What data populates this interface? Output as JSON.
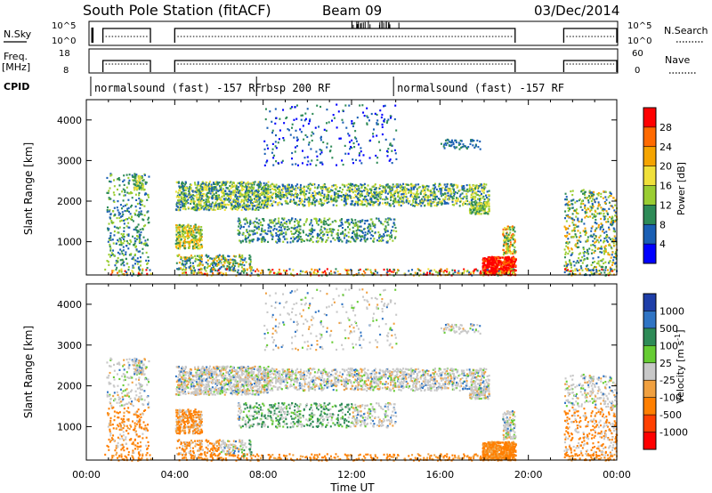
{
  "header": {
    "station": "South Pole Station (fitACF)",
    "beam": "Beam 09",
    "date": "03/Dec/2014"
  },
  "status": {
    "nsky_label": "N.Sky",
    "nsky_ticks": [
      "10^5",
      "10^0"
    ],
    "nsearch_label": "N.Search",
    "nsearch_ticks": [
      "10^5",
      "10^0"
    ],
    "freq_label": "Freq.",
    "freq_unit": "[MHz]",
    "freq_ticks": [
      "18",
      "8"
    ],
    "nave_label": "Nave",
    "nave_ticks": [
      "60",
      "0"
    ],
    "cpid_label": "CPID",
    "data_segments_utc": [
      [
        0.75,
        2.9
      ],
      [
        4.0,
        19.4
      ],
      [
        21.6,
        24.0
      ]
    ],
    "cpid_segments": [
      {
        "start": 0.2,
        "label": "normalsound (fast) -157 RF"
      },
      {
        "start": 7.7,
        "label": "rbsp 200 RF"
      },
      {
        "start": 13.9,
        "label": "normalsound (fast) -157 RF"
      }
    ]
  },
  "chart_data": [
    {
      "type": "heatmap",
      "title": "Power",
      "ylabel": "Slant Range [km]",
      "xlabel": "",
      "xlim": [
        0,
        24
      ],
      "ylim": [
        180,
        4500
      ],
      "yticks": [
        1000,
        2000,
        3000,
        4000
      ],
      "colorbar": {
        "label": "Power [dB]",
        "ticks": [
          "28",
          "24",
          "20",
          "16",
          "12",
          "8",
          "4"
        ],
        "colors": [
          "#ff0000",
          "#ff6a00",
          "#f5a400",
          "#f0e03a",
          "#9acd32",
          "#2e8b57",
          "#1a5fb4",
          "#0000ff"
        ]
      },
      "features": [
        {
          "t": [
            0.9,
            2.8
          ],
          "range": [
            350,
            2700
          ],
          "level": "low-mid"
        },
        {
          "t": [
            4.0,
            8.0
          ],
          "range": [
            1800,
            2500
          ],
          "level": "mid"
        },
        {
          "t": [
            4.0,
            5.0
          ],
          "range": [
            900,
            1400
          ],
          "level": "high"
        },
        {
          "t": [
            7.0,
            14.0
          ],
          "range": [
            1000,
            1600
          ],
          "level": "mid"
        },
        {
          "t": [
            8.0,
            18.0
          ],
          "range": [
            1900,
            2400
          ],
          "level": "mid"
        },
        {
          "t": [
            17.9,
            19.4
          ],
          "range": [
            200,
            650
          ],
          "level": "max"
        },
        {
          "t": [
            21.5,
            24.0
          ],
          "range": [
            300,
            2300
          ],
          "level": "low-mid"
        }
      ]
    },
    {
      "type": "heatmap",
      "title": "Velocity",
      "ylabel": "Slant Range [km]",
      "xlabel": "Time UT",
      "xlim": [
        0,
        24
      ],
      "ylim": [
        180,
        4500
      ],
      "yticks": [
        1000,
        2000,
        3000,
        4000
      ],
      "xticks": [
        "00:00",
        "04:00",
        "08:00",
        "12:00",
        "16:00",
        "20:00",
        "00:00"
      ],
      "colorbar": {
        "label": "Velocity [m s^-1]",
        "ticks": [
          "1000",
          "500",
          "100",
          "25",
          "-25",
          "-100",
          "-500",
          "-1000"
        ],
        "colors": [
          "#1e3ea8",
          "#2f74c4",
          "#2e8b57",
          "#66cc33",
          "#c8c8c8",
          "#f0a040",
          "#ff7f00",
          "#ff4000",
          "#ff0000"
        ]
      }
    }
  ]
}
